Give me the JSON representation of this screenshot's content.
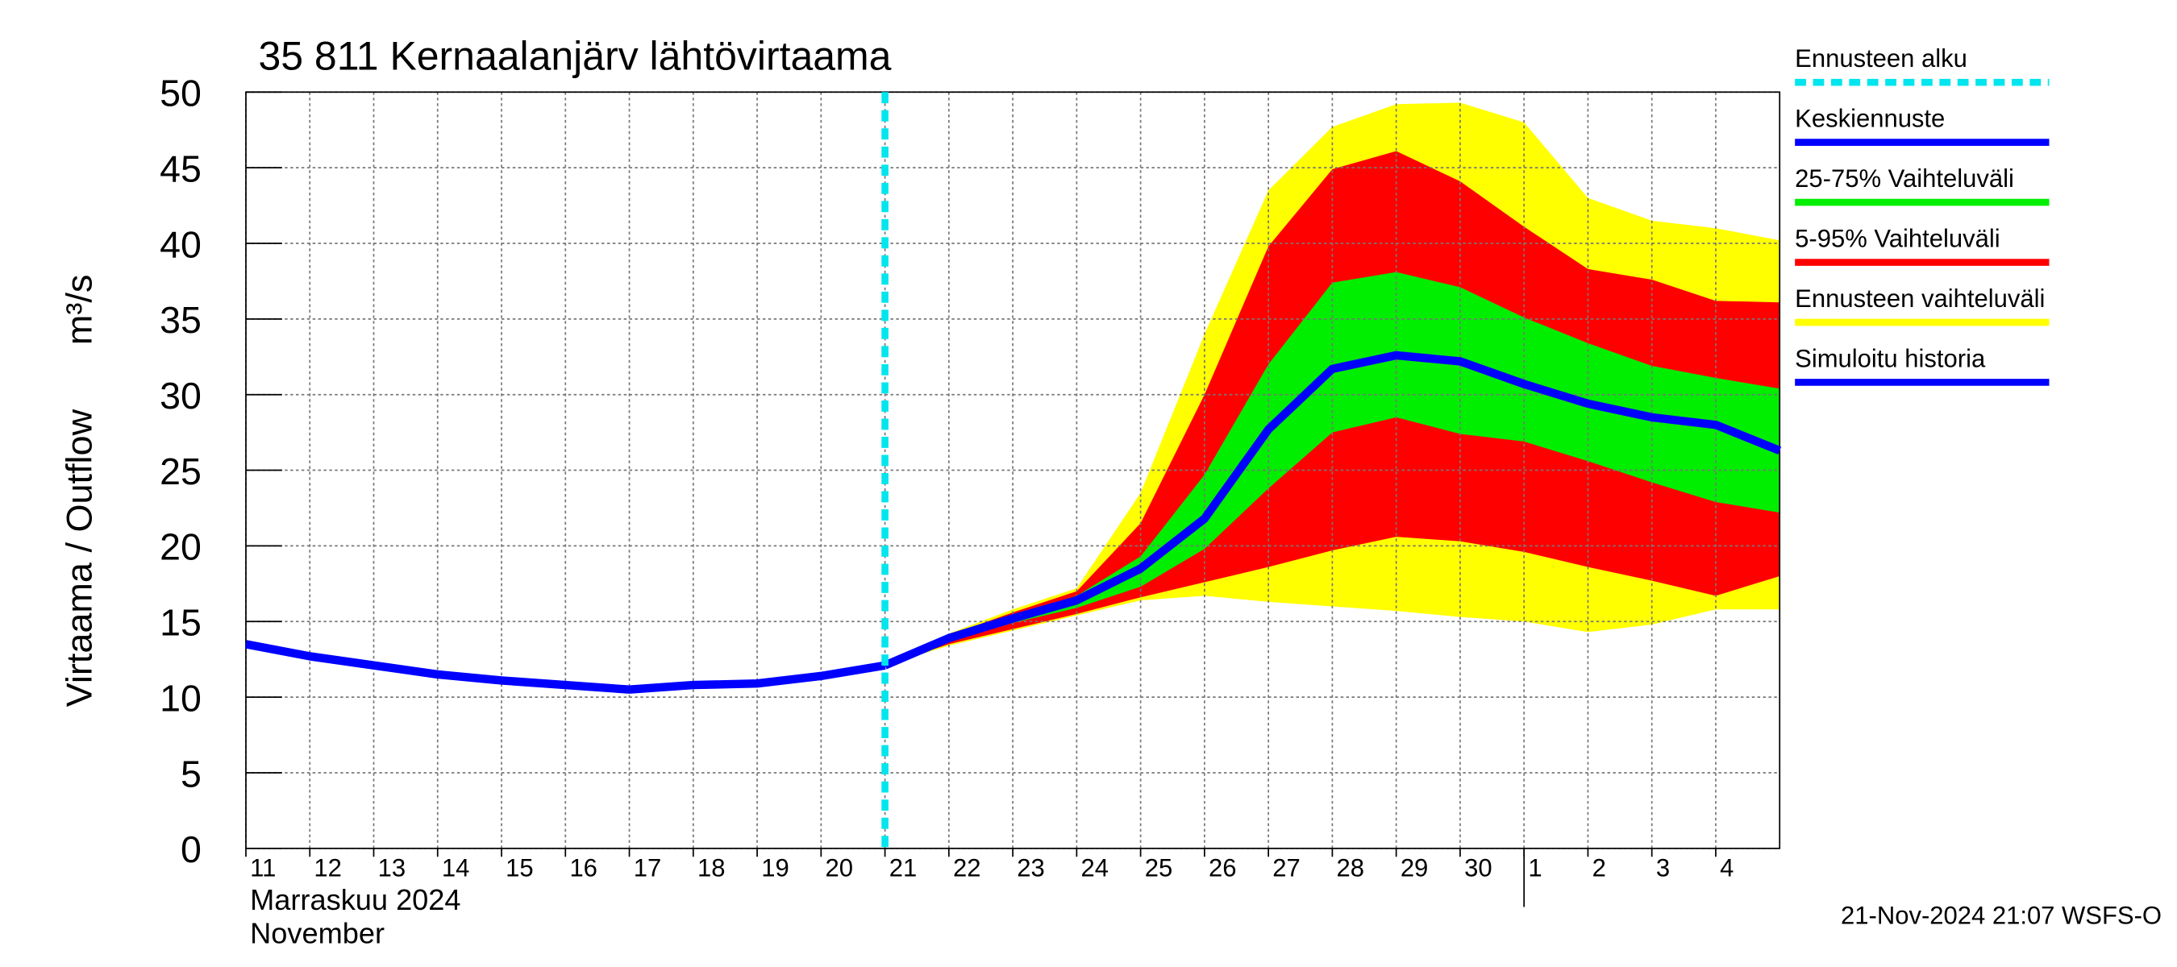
{
  "chart_data": {
    "type": "band-forecast",
    "title": "35 811 Kernaalanjärv lähtövirtaama",
    "y_label": "Virtaama / Outflow",
    "y_unit": "m³/s",
    "x_label_fi": "Marraskuu 2024",
    "x_label_en": "November",
    "footer": "21-Nov-2024 21:07 WSFS-O",
    "x": [
      0,
      1,
      2,
      3,
      4,
      5,
      6,
      7,
      8,
      9,
      10,
      11,
      12,
      13,
      14,
      15,
      16,
      17,
      18,
      19,
      20,
      21,
      22,
      23,
      24
    ],
    "xlim": [
      0,
      24
    ],
    "xticks": [
      {
        "value": 0,
        "label": "11"
      },
      {
        "value": 1,
        "label": "12"
      },
      {
        "value": 2,
        "label": "13"
      },
      {
        "value": 3,
        "label": "14"
      },
      {
        "value": 4,
        "label": "15"
      },
      {
        "value": 5,
        "label": "16"
      },
      {
        "value": 6,
        "label": "17"
      },
      {
        "value": 7,
        "label": "18"
      },
      {
        "value": 8,
        "label": "19"
      },
      {
        "value": 9,
        "label": "20"
      },
      {
        "value": 10,
        "label": "21"
      },
      {
        "value": 11,
        "label": "22"
      },
      {
        "value": 12,
        "label": "23"
      },
      {
        "value": 13,
        "label": "24"
      },
      {
        "value": 14,
        "label": "25"
      },
      {
        "value": 15,
        "label": "26"
      },
      {
        "value": 16,
        "label": "27"
      },
      {
        "value": 17,
        "label": "28"
      },
      {
        "value": 18,
        "label": "29"
      },
      {
        "value": 19,
        "label": "30"
      },
      {
        "value": 20,
        "label": "1"
      },
      {
        "value": 21,
        "label": "2"
      },
      {
        "value": 22,
        "label": "3"
      },
      {
        "value": 23,
        "label": "4"
      }
    ],
    "month_boundary": 20,
    "ylim": [
      0,
      50
    ],
    "yticks": [
      0,
      5,
      10,
      15,
      20,
      25,
      30,
      35,
      40,
      45,
      50
    ],
    "grid": true,
    "forecast_start": {
      "name": "Ennusteen alku",
      "color": "#00e5ee",
      "x": 10
    },
    "series": [
      {
        "name": "Keskiennuste",
        "kind": "line",
        "color": "#0000ff",
        "values": [
          null,
          null,
          null,
          null,
          null,
          null,
          null,
          null,
          null,
          null,
          12.1,
          13.9,
          15.2,
          16.4,
          18.5,
          21.8,
          27.7,
          31.7,
          32.6,
          32.2,
          30.7,
          29.4,
          28.5,
          28.0,
          26.3
        ]
      },
      {
        "name": "25-75% Vaihteluväli",
        "kind": "band",
        "color": "#00ee00",
        "values": [
          null,
          null,
          null,
          null,
          null,
          null,
          null,
          null,
          null,
          null,
          12.1,
          14.0,
          15.4,
          16.7,
          19.3,
          24.7,
          32.0,
          37.4,
          38.1,
          37.1,
          35.1,
          33.4,
          31.9,
          31.1,
          30.4
        ],
        "lower": [
          null,
          null,
          null,
          null,
          null,
          null,
          null,
          null,
          null,
          null,
          12.1,
          13.7,
          14.9,
          15.9,
          17.3,
          19.8,
          23.8,
          27.5,
          28.5,
          27.4,
          26.9,
          25.6,
          24.2,
          22.9,
          22.2
        ]
      },
      {
        "name": "5-95% Vaihteluväli",
        "kind": "band",
        "color": "#ff0000",
        "values": [
          null,
          null,
          null,
          null,
          null,
          null,
          null,
          null,
          null,
          null,
          12.1,
          14.1,
          15.6,
          17.0,
          21.5,
          30.0,
          39.8,
          44.9,
          46.1,
          44.1,
          41.1,
          38.3,
          37.6,
          36.2,
          36.1
        ],
        "lower": [
          null,
          null,
          null,
          null,
          null,
          null,
          null,
          null,
          null,
          null,
          12.1,
          13.5,
          14.5,
          15.5,
          16.6,
          17.6,
          18.6,
          19.7,
          20.6,
          20.3,
          19.6,
          18.6,
          17.7,
          16.7,
          18.0
        ]
      },
      {
        "name": "Ennusteen vaihteluväli",
        "kind": "band",
        "color": "#ffff00",
        "values": [
          null,
          null,
          null,
          null,
          null,
          null,
          null,
          null,
          null,
          null,
          12.1,
          14.2,
          15.8,
          17.2,
          23.5,
          34.0,
          43.5,
          47.7,
          49.2,
          49.3,
          48.0,
          43.0,
          41.5,
          41.0,
          40.2
        ],
        "lower": [
          null,
          null,
          null,
          null,
          null,
          null,
          null,
          null,
          null,
          null,
          12.1,
          13.4,
          14.4,
          15.4,
          16.4,
          16.7,
          16.3,
          16.0,
          15.7,
          15.3,
          15.0,
          14.3,
          14.8,
          15.8,
          15.8
        ]
      },
      {
        "name": "Simuloitu historia",
        "kind": "line",
        "color": "#0000ff",
        "values": [
          13.5,
          12.7,
          12.1,
          11.5,
          11.1,
          10.8,
          10.5,
          10.8,
          10.9,
          11.4,
          12.1,
          null,
          null,
          null,
          null,
          null,
          null,
          null,
          null,
          null,
          null,
          null,
          null,
          null,
          null
        ]
      }
    ]
  }
}
